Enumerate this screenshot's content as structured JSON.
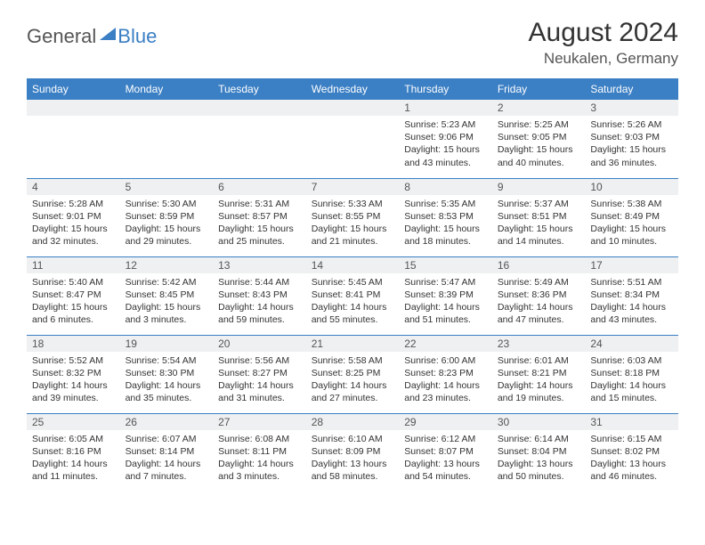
{
  "logo": {
    "part1": "General",
    "part2": "Blue"
  },
  "title": "August 2024",
  "location": "Neukalen, Germany",
  "header_bg": "#3b7fc4",
  "header_fg": "#ffffff",
  "daynum_bg": "#eef0f1",
  "divider_color": "#3b7fc4",
  "weekdays": [
    "Sunday",
    "Monday",
    "Tuesday",
    "Wednesday",
    "Thursday",
    "Friday",
    "Saturday"
  ],
  "weeks": [
    [
      null,
      null,
      null,
      null,
      {
        "n": "1",
        "sr": "5:23 AM",
        "ss": "9:06 PM",
        "dl": "15 hours and 43 minutes."
      },
      {
        "n": "2",
        "sr": "5:25 AM",
        "ss": "9:05 PM",
        "dl": "15 hours and 40 minutes."
      },
      {
        "n": "3",
        "sr": "5:26 AM",
        "ss": "9:03 PM",
        "dl": "15 hours and 36 minutes."
      }
    ],
    [
      {
        "n": "4",
        "sr": "5:28 AM",
        "ss": "9:01 PM",
        "dl": "15 hours and 32 minutes."
      },
      {
        "n": "5",
        "sr": "5:30 AM",
        "ss": "8:59 PM",
        "dl": "15 hours and 29 minutes."
      },
      {
        "n": "6",
        "sr": "5:31 AM",
        "ss": "8:57 PM",
        "dl": "15 hours and 25 minutes."
      },
      {
        "n": "7",
        "sr": "5:33 AM",
        "ss": "8:55 PM",
        "dl": "15 hours and 21 minutes."
      },
      {
        "n": "8",
        "sr": "5:35 AM",
        "ss": "8:53 PM",
        "dl": "15 hours and 18 minutes."
      },
      {
        "n": "9",
        "sr": "5:37 AM",
        "ss": "8:51 PM",
        "dl": "15 hours and 14 minutes."
      },
      {
        "n": "10",
        "sr": "5:38 AM",
        "ss": "8:49 PM",
        "dl": "15 hours and 10 minutes."
      }
    ],
    [
      {
        "n": "11",
        "sr": "5:40 AM",
        "ss": "8:47 PM",
        "dl": "15 hours and 6 minutes."
      },
      {
        "n": "12",
        "sr": "5:42 AM",
        "ss": "8:45 PM",
        "dl": "15 hours and 3 minutes."
      },
      {
        "n": "13",
        "sr": "5:44 AM",
        "ss": "8:43 PM",
        "dl": "14 hours and 59 minutes."
      },
      {
        "n": "14",
        "sr": "5:45 AM",
        "ss": "8:41 PM",
        "dl": "14 hours and 55 minutes."
      },
      {
        "n": "15",
        "sr": "5:47 AM",
        "ss": "8:39 PM",
        "dl": "14 hours and 51 minutes."
      },
      {
        "n": "16",
        "sr": "5:49 AM",
        "ss": "8:36 PM",
        "dl": "14 hours and 47 minutes."
      },
      {
        "n": "17",
        "sr": "5:51 AM",
        "ss": "8:34 PM",
        "dl": "14 hours and 43 minutes."
      }
    ],
    [
      {
        "n": "18",
        "sr": "5:52 AM",
        "ss": "8:32 PM",
        "dl": "14 hours and 39 minutes."
      },
      {
        "n": "19",
        "sr": "5:54 AM",
        "ss": "8:30 PM",
        "dl": "14 hours and 35 minutes."
      },
      {
        "n": "20",
        "sr": "5:56 AM",
        "ss": "8:27 PM",
        "dl": "14 hours and 31 minutes."
      },
      {
        "n": "21",
        "sr": "5:58 AM",
        "ss": "8:25 PM",
        "dl": "14 hours and 27 minutes."
      },
      {
        "n": "22",
        "sr": "6:00 AM",
        "ss": "8:23 PM",
        "dl": "14 hours and 23 minutes."
      },
      {
        "n": "23",
        "sr": "6:01 AM",
        "ss": "8:21 PM",
        "dl": "14 hours and 19 minutes."
      },
      {
        "n": "24",
        "sr": "6:03 AM",
        "ss": "8:18 PM",
        "dl": "14 hours and 15 minutes."
      }
    ],
    [
      {
        "n": "25",
        "sr": "6:05 AM",
        "ss": "8:16 PM",
        "dl": "14 hours and 11 minutes."
      },
      {
        "n": "26",
        "sr": "6:07 AM",
        "ss": "8:14 PM",
        "dl": "14 hours and 7 minutes."
      },
      {
        "n": "27",
        "sr": "6:08 AM",
        "ss": "8:11 PM",
        "dl": "14 hours and 3 minutes."
      },
      {
        "n": "28",
        "sr": "6:10 AM",
        "ss": "8:09 PM",
        "dl": "13 hours and 58 minutes."
      },
      {
        "n": "29",
        "sr": "6:12 AM",
        "ss": "8:07 PM",
        "dl": "13 hours and 54 minutes."
      },
      {
        "n": "30",
        "sr": "6:14 AM",
        "ss": "8:04 PM",
        "dl": "13 hours and 50 minutes."
      },
      {
        "n": "31",
        "sr": "6:15 AM",
        "ss": "8:02 PM",
        "dl": "13 hours and 46 minutes."
      }
    ]
  ],
  "labels": {
    "sunrise": "Sunrise: ",
    "sunset": "Sunset: ",
    "daylight": "Daylight: "
  }
}
